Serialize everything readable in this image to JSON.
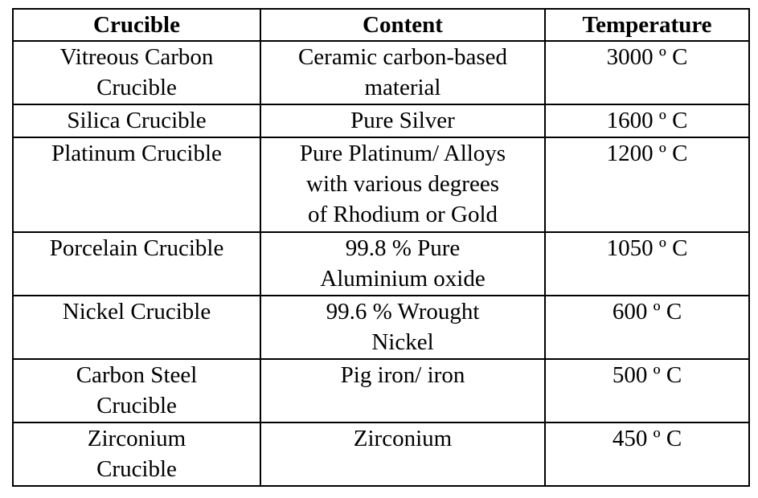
{
  "table": {
    "headers": [
      "Crucible",
      "Content",
      "Temperature"
    ],
    "rows": [
      {
        "crucible": "Vitreous Carbon\nCrucible",
        "content": "Ceramic carbon-based\nmaterial",
        "temperature": "3000 º C"
      },
      {
        "crucible": "Silica Crucible",
        "content": "Pure Silver",
        "temperature": "1600 º C"
      },
      {
        "crucible": "Platinum Crucible",
        "content": "Pure Platinum/ Alloys\nwith various degrees\nof Rhodium or Gold",
        "temperature": "1200 º  C"
      },
      {
        "crucible": "Porcelain Crucible",
        "content": "99.8 % Pure\nAluminium oxide",
        "temperature": "1050 º C"
      },
      {
        "crucible": "Nickel Crucible",
        "content": "99.6 % Wrought\nNickel",
        "temperature": "600 º C"
      },
      {
        "crucible": "Carbon Steel\nCrucible",
        "content": "Pig iron/ iron",
        "temperature": "500 º C"
      },
      {
        "crucible": "Zirconium\nCrucible",
        "content": "Zirconium",
        "temperature": "450 º C"
      }
    ]
  }
}
